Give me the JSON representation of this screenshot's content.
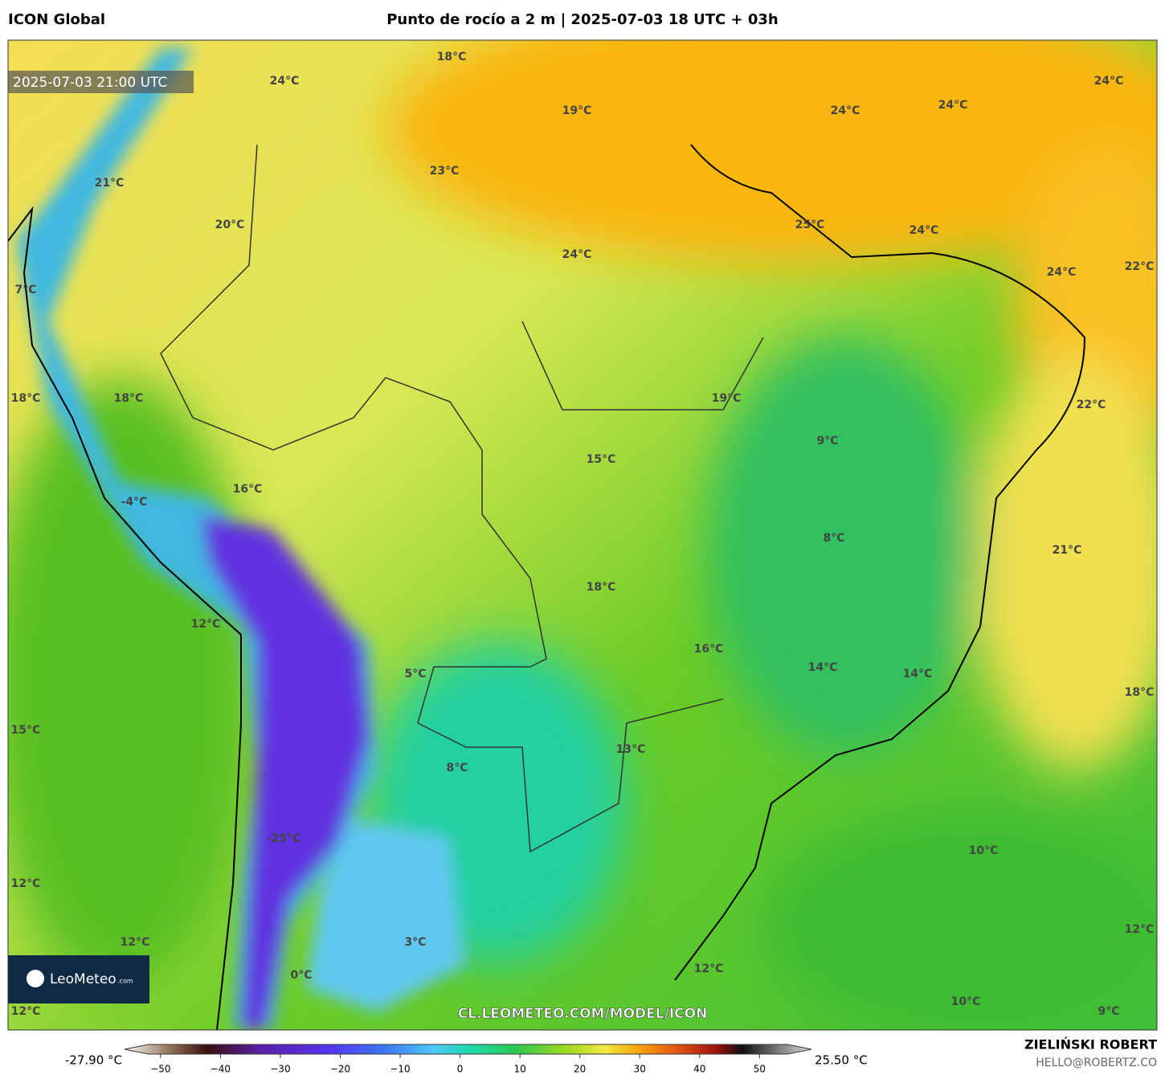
{
  "header": {
    "model": "ICON Global",
    "title": "Punto de rocío a 2 m | 2025-07-03 18 UTC + 03h"
  },
  "map": {
    "valid_time": "2025-07-03 21:00 UTC",
    "watermark": "CL.LEOMETEO.COM/MODEL/ICON",
    "logo": {
      "name": "LeoMeteo",
      "suffix": ".com"
    },
    "labels": [
      "18°C",
      "24°C",
      "19°C",
      "24°C",
      "24°C",
      "24°C",
      "23°C",
      "21°C",
      "20°C",
      "25°C",
      "24°C",
      "24°C",
      "24°C",
      "22°C",
      "7°C",
      "18°C",
      "18°C",
      "19°C",
      "22°C",
      "9°C",
      "15°C",
      "16°C",
      "-4°C",
      "8°C",
      "21°C",
      "18°C",
      "12°C",
      "16°C",
      "14°C",
      "14°C",
      "5°C",
      "18°C",
      "15°C",
      "13°C",
      "8°C",
      "-25°C",
      "10°C",
      "12°C",
      "3°C",
      "12°C",
      "12°C",
      "0°C",
      "12°C",
      "10°C",
      "12°C",
      "9°C"
    ]
  },
  "colorbar": {
    "min_label": "-27.90 °C",
    "max_label": "25.50 °C",
    "lim": [
      -54,
      58
    ],
    "ticks": [
      {
        "value": -50,
        "label": "−50"
      },
      {
        "value": -40,
        "label": "−40"
      },
      {
        "value": -30,
        "label": "−30"
      },
      {
        "value": -20,
        "label": "−20"
      },
      {
        "value": -10,
        "label": "−10"
      },
      0,
      10,
      20,
      30,
      40,
      50
    ]
  },
  "footer": {
    "author": "ZIELIŃSKI ROBERT",
    "email": "HELLO@ROBERTZ.CO"
  }
}
